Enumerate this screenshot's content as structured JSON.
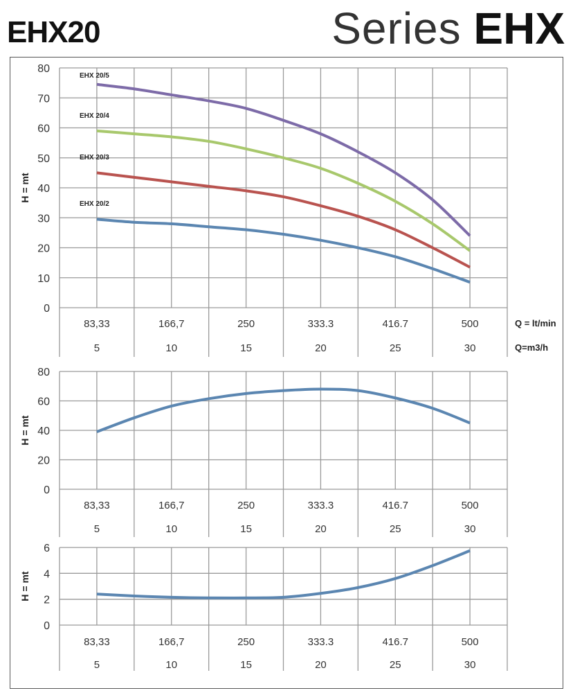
{
  "header": {
    "model_title": "EHX20",
    "series_prefix": "Series",
    "series_name": "EHX"
  },
  "chart_data": [
    {
      "type": "line",
      "ylabel": "H = mt",
      "ylim": [
        0,
        80
      ],
      "yticks": [
        0,
        10,
        20,
        30,
        40,
        50,
        60,
        70,
        80
      ],
      "x_axis_label_flow_lpm": "Q = lt/min",
      "x_axis_label_flow_m3h": "Q=m3/h",
      "x_tick_labels_lpm": [
        "83,33",
        "166,7",
        "250",
        "333.3",
        "416.7",
        "500"
      ],
      "x_tick_labels_m3h": [
        "5",
        "10",
        "15",
        "20",
        "25",
        "30"
      ],
      "grid": true,
      "x": [
        83.33,
        125,
        166.7,
        208.3,
        250,
        291.7,
        333.3,
        375,
        416.7,
        458.3,
        500
      ],
      "series": [
        {
          "name": "EHX 20/5",
          "color": "#7d6ba8",
          "values": [
            74.5,
            73,
            71,
            69,
            66.5,
            62.5,
            58,
            52,
            45,
            36,
            24
          ]
        },
        {
          "name": "EHX 20/4",
          "color": "#a8c86c",
          "values": [
            59,
            58,
            57,
            55.5,
            53,
            50,
            46.5,
            41.5,
            35.5,
            28,
            19
          ]
        },
        {
          "name": "EHX 20/3",
          "color": "#b9534f",
          "values": [
            45,
            43.5,
            42,
            40.5,
            39,
            37,
            34,
            30.5,
            26,
            20,
            13.5
          ]
        },
        {
          "name": "EHX 20/2",
          "color": "#5b86b1",
          "values": [
            29.5,
            28.5,
            28,
            27,
            26,
            24.5,
            22.5,
            20,
            17,
            13,
            8.5
          ]
        }
      ]
    },
    {
      "type": "line",
      "ylabel": "H = mt",
      "ylim": [
        0,
        80
      ],
      "yticks": [
        0,
        20,
        40,
        60,
        80
      ],
      "x_tick_labels_lpm": [
        "83,33",
        "166,7",
        "250",
        "333.3",
        "416.7",
        "500"
      ],
      "x_tick_labels_m3h": [
        "5",
        "10",
        "15",
        "20",
        "25",
        "30"
      ],
      "grid": true,
      "x": [
        83.33,
        125,
        166.7,
        208.3,
        250,
        291.7,
        333.3,
        375,
        416.7,
        458.3,
        500
      ],
      "series": [
        {
          "color": "#5b86b1",
          "values": [
            39,
            48.5,
            56.5,
            61.5,
            65,
            67,
            68,
            67,
            62,
            55,
            45
          ]
        }
      ]
    },
    {
      "type": "line",
      "ylabel": "H = mt",
      "ylim": [
        0,
        6
      ],
      "yticks": [
        0,
        2,
        4,
        6
      ],
      "x_tick_labels_lpm": [
        "83,33",
        "166,7",
        "250",
        "333.3",
        "416.7",
        "500"
      ],
      "x_tick_labels_m3h": [
        "5",
        "10",
        "15",
        "20",
        "25",
        "30"
      ],
      "grid": true,
      "x": [
        83.33,
        125,
        166.7,
        208.3,
        250,
        291.7,
        333.3,
        375,
        416.7,
        458.3,
        500
      ],
      "series": [
        {
          "color": "#5b86b1",
          "values": [
            2.4,
            2.25,
            2.15,
            2.1,
            2.1,
            2.15,
            2.45,
            2.9,
            3.6,
            4.6,
            5.75
          ]
        }
      ]
    }
  ]
}
